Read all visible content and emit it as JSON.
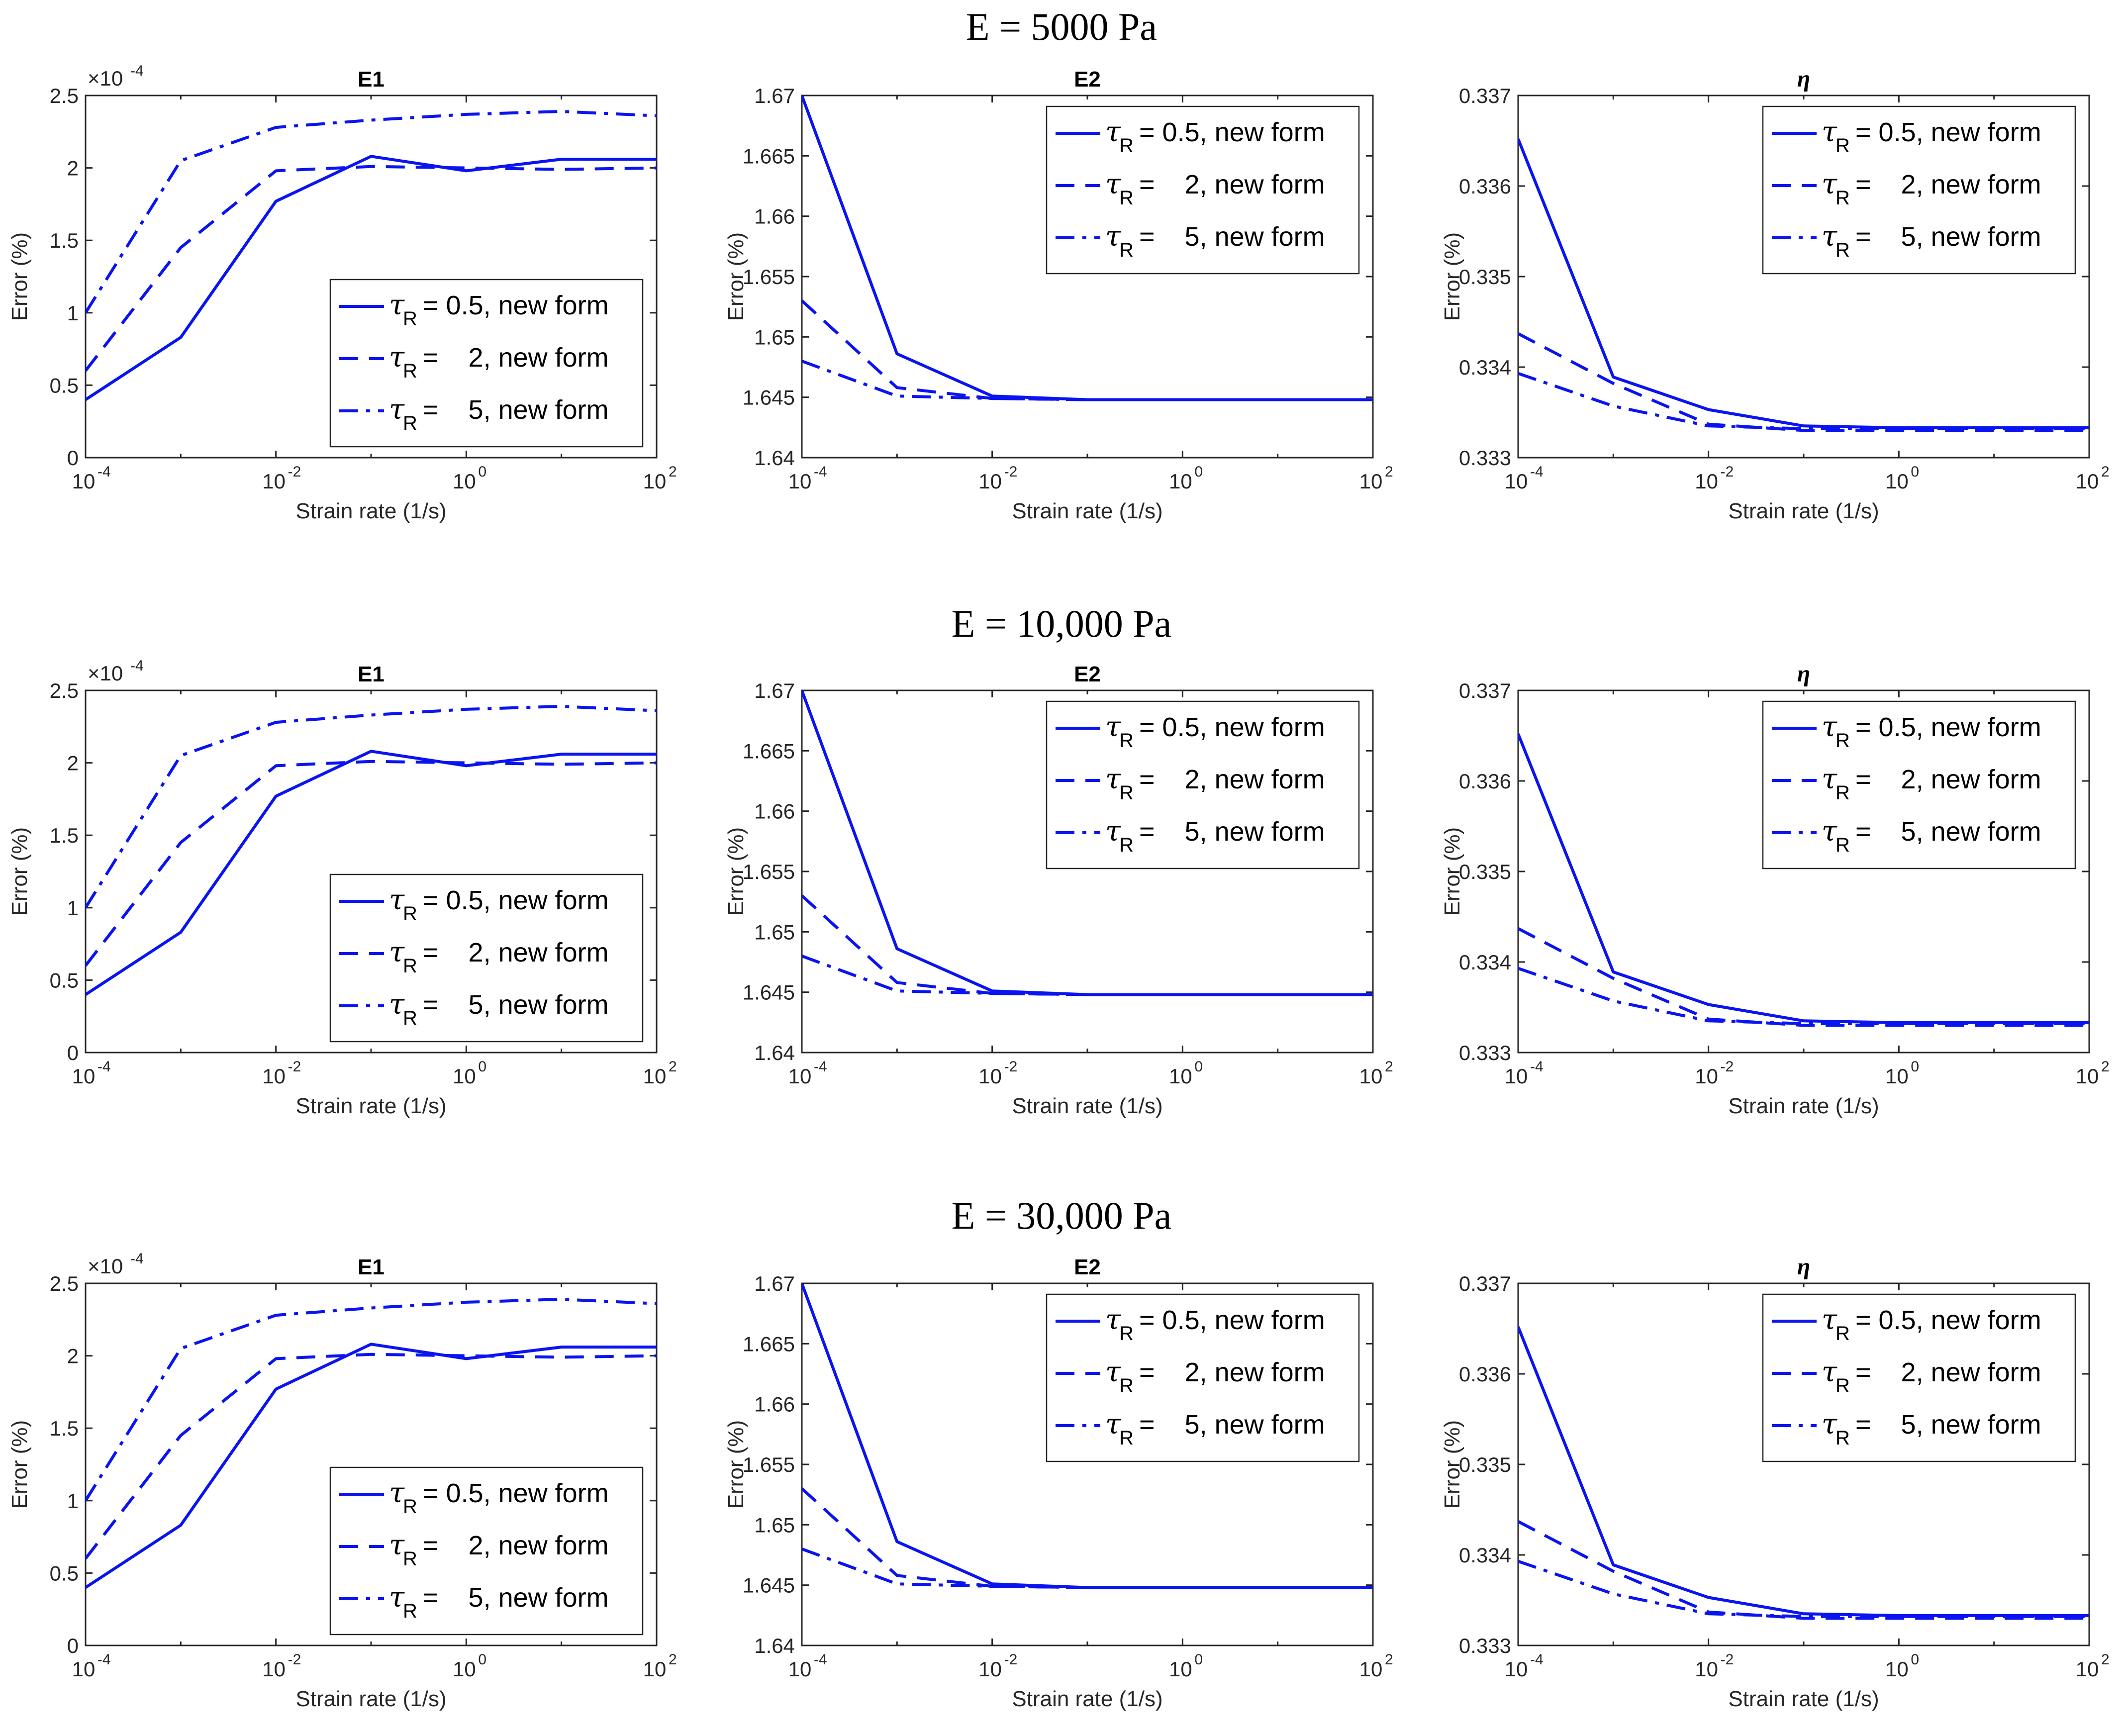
{
  "figure": {
    "rows": [
      {
        "title": "E = 5000 Pa"
      },
      {
        "title": "E = 10,000 Pa"
      },
      {
        "title": "E = 30,000 Pa"
      }
    ]
  },
  "colors": {
    "line": "#0A14F0",
    "axis": "#262626"
  },
  "legend_entries": [
    {
      "symbol": "τ",
      "subscript": "R",
      "text": "= 0.5, new form",
      "dash": "solid"
    },
    {
      "symbol": "τ",
      "subscript": "R",
      "text": "=    2, new form",
      "dash": "dashed"
    },
    {
      "symbol": "τ",
      "subscript": "R",
      "text": "=    5, new form",
      "dash": "dashdot"
    }
  ],
  "chart_data": [
    {
      "panel": "E1",
      "type": "line",
      "title": "E1",
      "title_style": "bold",
      "xlabel": "Strain rate (1/s)",
      "ylabel": "Error (%)",
      "xscale": "log",
      "xlim_exp": [
        -4,
        2
      ],
      "xticks": [
        {
          "base": "10",
          "exp": "-4"
        },
        {
          "base": "10",
          "exp": "-2"
        },
        {
          "base": "10",
          "exp": "0"
        },
        {
          "base": "10",
          "exp": "2"
        }
      ],
      "ylim": [
        0,
        2.5
      ],
      "yticks": [
        "0",
        "0.5",
        "1",
        "1.5",
        "2",
        "2.5"
      ],
      "y_multiplier": {
        "base": "×10",
        "exp": "-4"
      },
      "legend_position": "lower-right",
      "x_exp": [
        -4,
        -3,
        -2,
        -1,
        0,
        1,
        2
      ],
      "series": [
        {
          "name": "τR = 0.5, new form",
          "dash": "solid",
          "values": [
            0.4,
            0.83,
            1.77,
            2.08,
            1.98,
            2.06,
            2.06
          ]
        },
        {
          "name": "τR = 2, new form",
          "dash": "dashed",
          "values": [
            0.6,
            1.45,
            1.98,
            2.01,
            2.0,
            1.99,
            2.0
          ]
        },
        {
          "name": "τR = 5, new form",
          "dash": "dashdot",
          "values": [
            1.0,
            2.05,
            2.28,
            2.33,
            2.37,
            2.39,
            2.36
          ]
        }
      ]
    },
    {
      "panel": "E2",
      "type": "line",
      "title": "E2",
      "title_style": "bold",
      "xlabel": "Strain rate (1/s)",
      "ylabel": "Error (%)",
      "xscale": "log",
      "xlim_exp": [
        -4,
        2
      ],
      "xticks": [
        {
          "base": "10",
          "exp": "-4"
        },
        {
          "base": "10",
          "exp": "-2"
        },
        {
          "base": "10",
          "exp": "0"
        },
        {
          "base": "10",
          "exp": "2"
        }
      ],
      "ylim": [
        1.64,
        1.67
      ],
      "yticks": [
        "1.64",
        "1.645",
        "1.65",
        "1.655",
        "1.66",
        "1.665",
        "1.67"
      ],
      "legend_position": "top-right",
      "x_exp": [
        -4,
        -3,
        -2,
        -1,
        0,
        1,
        2
      ],
      "series": [
        {
          "name": "τR = 0.5, new form",
          "dash": "solid",
          "values": [
            1.67,
            1.6486,
            1.6451,
            1.6448,
            1.6448,
            1.6448,
            1.6448
          ]
        },
        {
          "name": "τR = 2, new form",
          "dash": "dashed",
          "values": [
            1.653,
            1.6458,
            1.6449,
            1.6448,
            1.6448,
            1.6448,
            1.6448
          ]
        },
        {
          "name": "τR = 5, new form",
          "dash": "dashdot",
          "values": [
            1.648,
            1.6451,
            1.6449,
            1.6448,
            1.6448,
            1.6448,
            1.6448
          ]
        }
      ]
    },
    {
      "panel": "eta",
      "type": "line",
      "title": "η",
      "title_style": "greek",
      "xlabel": "Strain rate (1/s)",
      "ylabel": "Error (%)",
      "xscale": "log",
      "xlim_exp": [
        -4,
        2
      ],
      "xticks": [
        {
          "base": "10",
          "exp": "-4"
        },
        {
          "base": "10",
          "exp": "-2"
        },
        {
          "base": "10",
          "exp": "0"
        },
        {
          "base": "10",
          "exp": "2"
        }
      ],
      "ylim": [
        0.333,
        0.337
      ],
      "yticks": [
        "0.333",
        "0.334",
        "0.335",
        "0.336",
        "0.337"
      ],
      "legend_position": "top-right",
      "x_exp": [
        -4,
        -3,
        -2,
        -1,
        0,
        1,
        2
      ],
      "series": [
        {
          "name": "τR = 0.5, new form",
          "dash": "solid",
          "values": [
            0.33652,
            0.33389,
            0.33353,
            0.33335,
            0.33333,
            0.33333,
            0.33333
          ]
        },
        {
          "name": "τR = 2, new form",
          "dash": "dashed",
          "values": [
            0.33437,
            0.33382,
            0.33337,
            0.3333,
            0.3333,
            0.3333,
            0.3333
          ]
        },
        {
          "name": "τR = 5, new form",
          "dash": "dashdot",
          "values": [
            0.33393,
            0.33357,
            0.33335,
            0.33332,
            0.33332,
            0.33332,
            0.33332
          ]
        }
      ]
    }
  ]
}
